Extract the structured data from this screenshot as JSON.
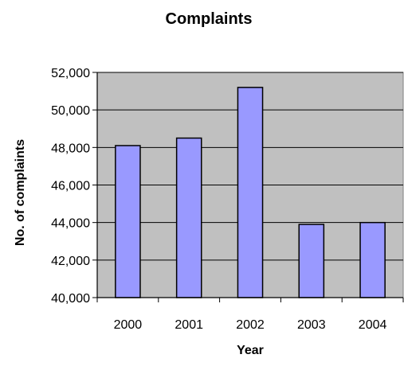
{
  "chart_data": {
    "type": "bar",
    "title": "Complaints",
    "xlabel": "Year",
    "ylabel": "No. of complaints",
    "categories": [
      "2000",
      "2001",
      "2002",
      "2003",
      "2004"
    ],
    "values": [
      48100,
      48500,
      51200,
      43900,
      44000
    ],
    "ylim": [
      40000,
      52000
    ],
    "y_ticks": [
      "40,000",
      "42,000",
      "44,000",
      "46,000",
      "48,000",
      "50,000",
      "52,000"
    ],
    "y_tick_values": [
      40000,
      42000,
      44000,
      46000,
      48000,
      50000,
      52000
    ],
    "grid": true,
    "legend": "none"
  },
  "colors": {
    "plot_background": "#c0c0c0",
    "bar_fill": "#9999ff",
    "bar_stroke": "#000000",
    "grid": "#000000"
  }
}
